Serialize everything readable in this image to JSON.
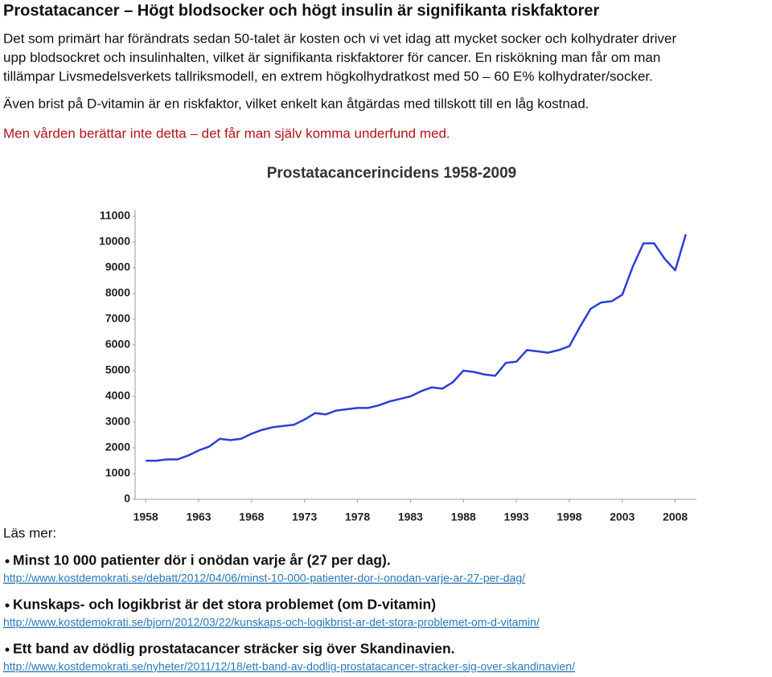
{
  "title": "Prostatacancer – Högt blodsocker och högt insulin är signifikanta riskfaktorer",
  "intro_lines": [
    "Det som primärt har förändrats sedan 50-talet är kosten och vi vet idag att mycket socker och kolhydrater driver",
    "upp blodsockret och insulinhalten, vilket är signifikanta riskfaktorer för cancer. En riskökning man får om man",
    "tillämpar Livsmedelsverkets tallriksmodell, en extrem högkolhydratkost med 50 – 60 E% kolhydrater/socker."
  ],
  "vitamin_text": "Även brist på D-vitamin är en riskfaktor, vilket enkelt kan åtgärdas med tillskott till en låg kostnad.",
  "highlight_text": "Men vården berättar inte detta – det får man själv komma underfund med.",
  "chart_data": {
    "type": "line",
    "title": "Prostatacancerincidens 1958-2009",
    "x": [
      1958,
      1959,
      1960,
      1961,
      1962,
      1963,
      1964,
      1965,
      1966,
      1967,
      1968,
      1969,
      1970,
      1971,
      1972,
      1973,
      1974,
      1975,
      1976,
      1977,
      1978,
      1979,
      1980,
      1981,
      1982,
      1983,
      1984,
      1985,
      1986,
      1987,
      1988,
      1989,
      1990,
      1991,
      1992,
      1993,
      1994,
      1995,
      1996,
      1997,
      1998,
      1999,
      2000,
      2001,
      2002,
      2003,
      2004,
      2005,
      2006,
      2007,
      2008,
      2009
    ],
    "values": [
      1500,
      1500,
      1550,
      1550,
      1700,
      1900,
      2050,
      2350,
      2300,
      2350,
      2550,
      2700,
      2800,
      2850,
      2900,
      3100,
      3350,
      3300,
      3450,
      3500,
      3550,
      3550,
      3650,
      3800,
      3900,
      4000,
      4200,
      4350,
      4300,
      4550,
      5000,
      4950,
      4850,
      4800,
      5300,
      5350,
      5800,
      5750,
      5700,
      5800,
      5950,
      6700,
      7400,
      7650,
      7700,
      7950,
      9050,
      9950,
      9950,
      9350,
      8900,
      10300
    ],
    "color": "#2b3fd4",
    "xlim": [
      1957,
      2010
    ],
    "xticks": [
      1958,
      1963,
      1968,
      1973,
      1978,
      1983,
      1988,
      1993,
      1998,
      2003,
      2008
    ],
    "ylim": [
      0,
      11000
    ],
    "yticks": [
      0,
      1000,
      2000,
      3000,
      4000,
      5000,
      6000,
      7000,
      8000,
      9000,
      10000,
      11000
    ]
  },
  "read_more_label": "Läs mer:",
  "links": [
    {
      "title": "Minst 10 000 patienter dör i onödan varje år (27 per dag).",
      "url": "http://www.kostdemokrati.se/debatt/2012/04/06/minst-10-000-patienter-dor-i-onodan-varje-ar-27-per-dag/"
    },
    {
      "title": "Kunskaps- och logikbrist är det stora problemet (om D-vitamin)",
      "url": "http://www.kostdemokrati.se/bjorn/2012/03/22/kunskaps-och-logikbrist-ar-det-stora-problemet-om-d-vitamin/"
    },
    {
      "title": "Ett band av dödlig prostatacancer sträcker sig över Skandinavien.",
      "url": "http://www.kostdemokrati.se/nyheter/2011/12/18/ett-band-av-dodlig-prostatacancer-stracker-sig-over-skandinavien/"
    }
  ]
}
